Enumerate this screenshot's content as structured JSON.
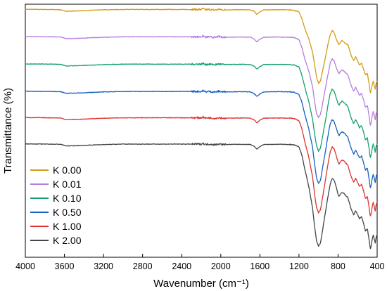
{
  "chart_data": {
    "type": "line",
    "title": "",
    "xlabel": "Wavenumber (cm⁻¹)",
    "ylabel": "Transmittance (%)",
    "xlim": [
      4000,
      400
    ],
    "x_reversed": true,
    "y_ticks_shown": false,
    "grid": false,
    "legend_position": "lower-left",
    "x_ticks": [
      4000,
      3600,
      3200,
      2800,
      2400,
      2000,
      1600,
      1200,
      800,
      400
    ],
    "x_tick_labels": [
      "4000",
      "3600",
      "3200",
      "2800",
      "2400",
      "2000",
      "1600",
      "1200",
      "800",
      "400"
    ],
    "spectrum_x": [
      4000,
      3750,
      3640,
      3580,
      3420,
      3250,
      3000,
      2800,
      2400,
      2200,
      2180,
      2160,
      2120,
      2060,
      2020,
      1980,
      1800,
      1700,
      1660,
      1630,
      1600,
      1560,
      1400,
      1300,
      1250,
      1200,
      1170,
      1140,
      1100,
      1060,
      1040,
      1020,
      1000,
      980,
      950,
      920,
      900,
      880,
      860,
      840,
      820,
      800,
      790,
      780,
      760,
      740,
      720,
      700,
      680,
      660,
      640,
      620,
      600,
      580,
      560,
      540,
      520,
      500,
      480,
      470,
      460,
      450,
      440,
      430,
      420,
      410,
      400
    ],
    "series": [
      {
        "name": "K 0.00",
        "color": "#d69b12",
        "y": [
          0.975,
          0.974,
          0.973,
          0.965,
          0.968,
          0.972,
          0.974,
          0.974,
          0.974,
          0.974,
          0.978,
          0.972,
          0.974,
          0.971,
          0.975,
          0.972,
          0.973,
          0.972,
          0.965,
          0.95,
          0.963,
          0.972,
          0.973,
          0.972,
          0.97,
          0.962,
          0.93,
          0.88,
          0.83,
          0.76,
          0.7,
          0.64,
          0.61,
          0.62,
          0.69,
          0.76,
          0.81,
          0.85,
          0.87,
          0.86,
          0.83,
          0.81,
          0.8,
          0.81,
          0.82,
          0.815,
          0.805,
          0.8,
          0.77,
          0.74,
          0.72,
          0.74,
          0.72,
          0.7,
          0.71,
          0.68,
          0.65,
          0.66,
          0.6,
          0.56,
          0.58,
          0.6,
          0.62,
          0.6,
          0.58,
          0.61,
          0.62
        ]
      },
      {
        "name": "K 0.01",
        "color": "#b57de0",
        "y": [
          0.84,
          0.839,
          0.838,
          0.83,
          0.832,
          0.836,
          0.839,
          0.839,
          0.839,
          0.839,
          0.843,
          0.837,
          0.839,
          0.836,
          0.84,
          0.837,
          0.838,
          0.837,
          0.829,
          0.814,
          0.827,
          0.837,
          0.838,
          0.837,
          0.835,
          0.825,
          0.785,
          0.73,
          0.67,
          0.59,
          0.52,
          0.46,
          0.44,
          0.455,
          0.53,
          0.61,
          0.66,
          0.71,
          0.73,
          0.72,
          0.69,
          0.665,
          0.655,
          0.665,
          0.675,
          0.67,
          0.66,
          0.65,
          0.62,
          0.59,
          0.57,
          0.59,
          0.57,
          0.55,
          0.56,
          0.53,
          0.49,
          0.5,
          0.44,
          0.4,
          0.42,
          0.45,
          0.47,
          0.45,
          0.43,
          0.46,
          0.47
        ]
      },
      {
        "name": "K 0.10",
        "color": "#13a06e",
        "y": [
          0.705,
          0.704,
          0.703,
          0.695,
          0.697,
          0.701,
          0.704,
          0.704,
          0.704,
          0.704,
          0.708,
          0.702,
          0.704,
          0.701,
          0.705,
          0.702,
          0.703,
          0.702,
          0.694,
          0.679,
          0.692,
          0.702,
          0.703,
          0.702,
          0.7,
          0.69,
          0.65,
          0.59,
          0.52,
          0.43,
          0.36,
          0.3,
          0.275,
          0.29,
          0.37,
          0.45,
          0.51,
          0.56,
          0.58,
          0.57,
          0.54,
          0.51,
          0.5,
          0.51,
          0.52,
          0.515,
          0.505,
          0.495,
          0.46,
          0.43,
          0.41,
          0.43,
          0.41,
          0.39,
          0.4,
          0.37,
          0.33,
          0.34,
          0.28,
          0.24,
          0.26,
          0.29,
          0.31,
          0.29,
          0.27,
          0.3,
          0.31
        ]
      },
      {
        "name": "K 0.50",
        "color": "#1560c0",
        "y": [
          0.57,
          0.569,
          0.568,
          0.56,
          0.562,
          0.566,
          0.569,
          0.569,
          0.569,
          0.569,
          0.573,
          0.567,
          0.569,
          0.566,
          0.57,
          0.567,
          0.568,
          0.567,
          0.559,
          0.544,
          0.557,
          0.567,
          0.568,
          0.567,
          0.565,
          0.555,
          0.515,
          0.455,
          0.385,
          0.29,
          0.21,
          0.14,
          0.115,
          0.13,
          0.215,
          0.3,
          0.36,
          0.41,
          0.43,
          0.42,
          0.39,
          0.36,
          0.35,
          0.36,
          0.37,
          0.365,
          0.355,
          0.345,
          0.31,
          0.28,
          0.26,
          0.28,
          0.26,
          0.24,
          0.25,
          0.22,
          0.18,
          0.19,
          0.13,
          0.09,
          0.11,
          0.14,
          0.16,
          0.14,
          0.12,
          0.15,
          0.16
        ]
      },
      {
        "name": "K 1.00",
        "color": "#e03030",
        "y": [
          0.44,
          0.439,
          0.438,
          0.43,
          0.432,
          0.436,
          0.439,
          0.439,
          0.439,
          0.439,
          0.443,
          0.437,
          0.439,
          0.436,
          0.44,
          0.437,
          0.438,
          0.437,
          0.429,
          0.414,
          0.427,
          0.437,
          0.438,
          0.437,
          0.435,
          0.425,
          0.385,
          0.32,
          0.245,
          0.145,
          0.06,
          -0.005,
          -0.03,
          -0.015,
          0.07,
          0.16,
          0.22,
          0.27,
          0.295,
          0.285,
          0.255,
          0.22,
          0.21,
          0.22,
          0.23,
          0.225,
          0.215,
          0.205,
          0.17,
          0.14,
          0.12,
          0.14,
          0.12,
          0.1,
          0.11,
          0.08,
          0.04,
          0.05,
          -0.01,
          -0.05,
          -0.03,
          0.0,
          0.02,
          0.0,
          -0.02,
          0.01,
          0.02
        ]
      },
      {
        "name": "K 2.00",
        "color": "#444444",
        "y": [
          0.31,
          0.309,
          0.308,
          0.3,
          0.302,
          0.306,
          0.309,
          0.309,
          0.309,
          0.309,
          0.313,
          0.307,
          0.309,
          0.306,
          0.31,
          0.307,
          0.308,
          0.307,
          0.299,
          0.284,
          0.297,
          0.307,
          0.308,
          0.307,
          0.305,
          0.295,
          0.255,
          0.185,
          0.1,
          -0.01,
          -0.1,
          -0.17,
          -0.195,
          -0.18,
          -0.09,
          0.0,
          0.06,
          0.11,
          0.14,
          0.13,
          0.1,
          0.06,
          0.05,
          0.06,
          0.07,
          0.065,
          0.055,
          0.045,
          0.01,
          -0.02,
          -0.04,
          -0.02,
          -0.04,
          -0.06,
          -0.05,
          -0.08,
          -0.12,
          -0.11,
          -0.17,
          -0.21,
          -0.19,
          -0.16,
          -0.14,
          -0.16,
          -0.18,
          -0.15,
          -0.14
        ]
      }
    ]
  }
}
